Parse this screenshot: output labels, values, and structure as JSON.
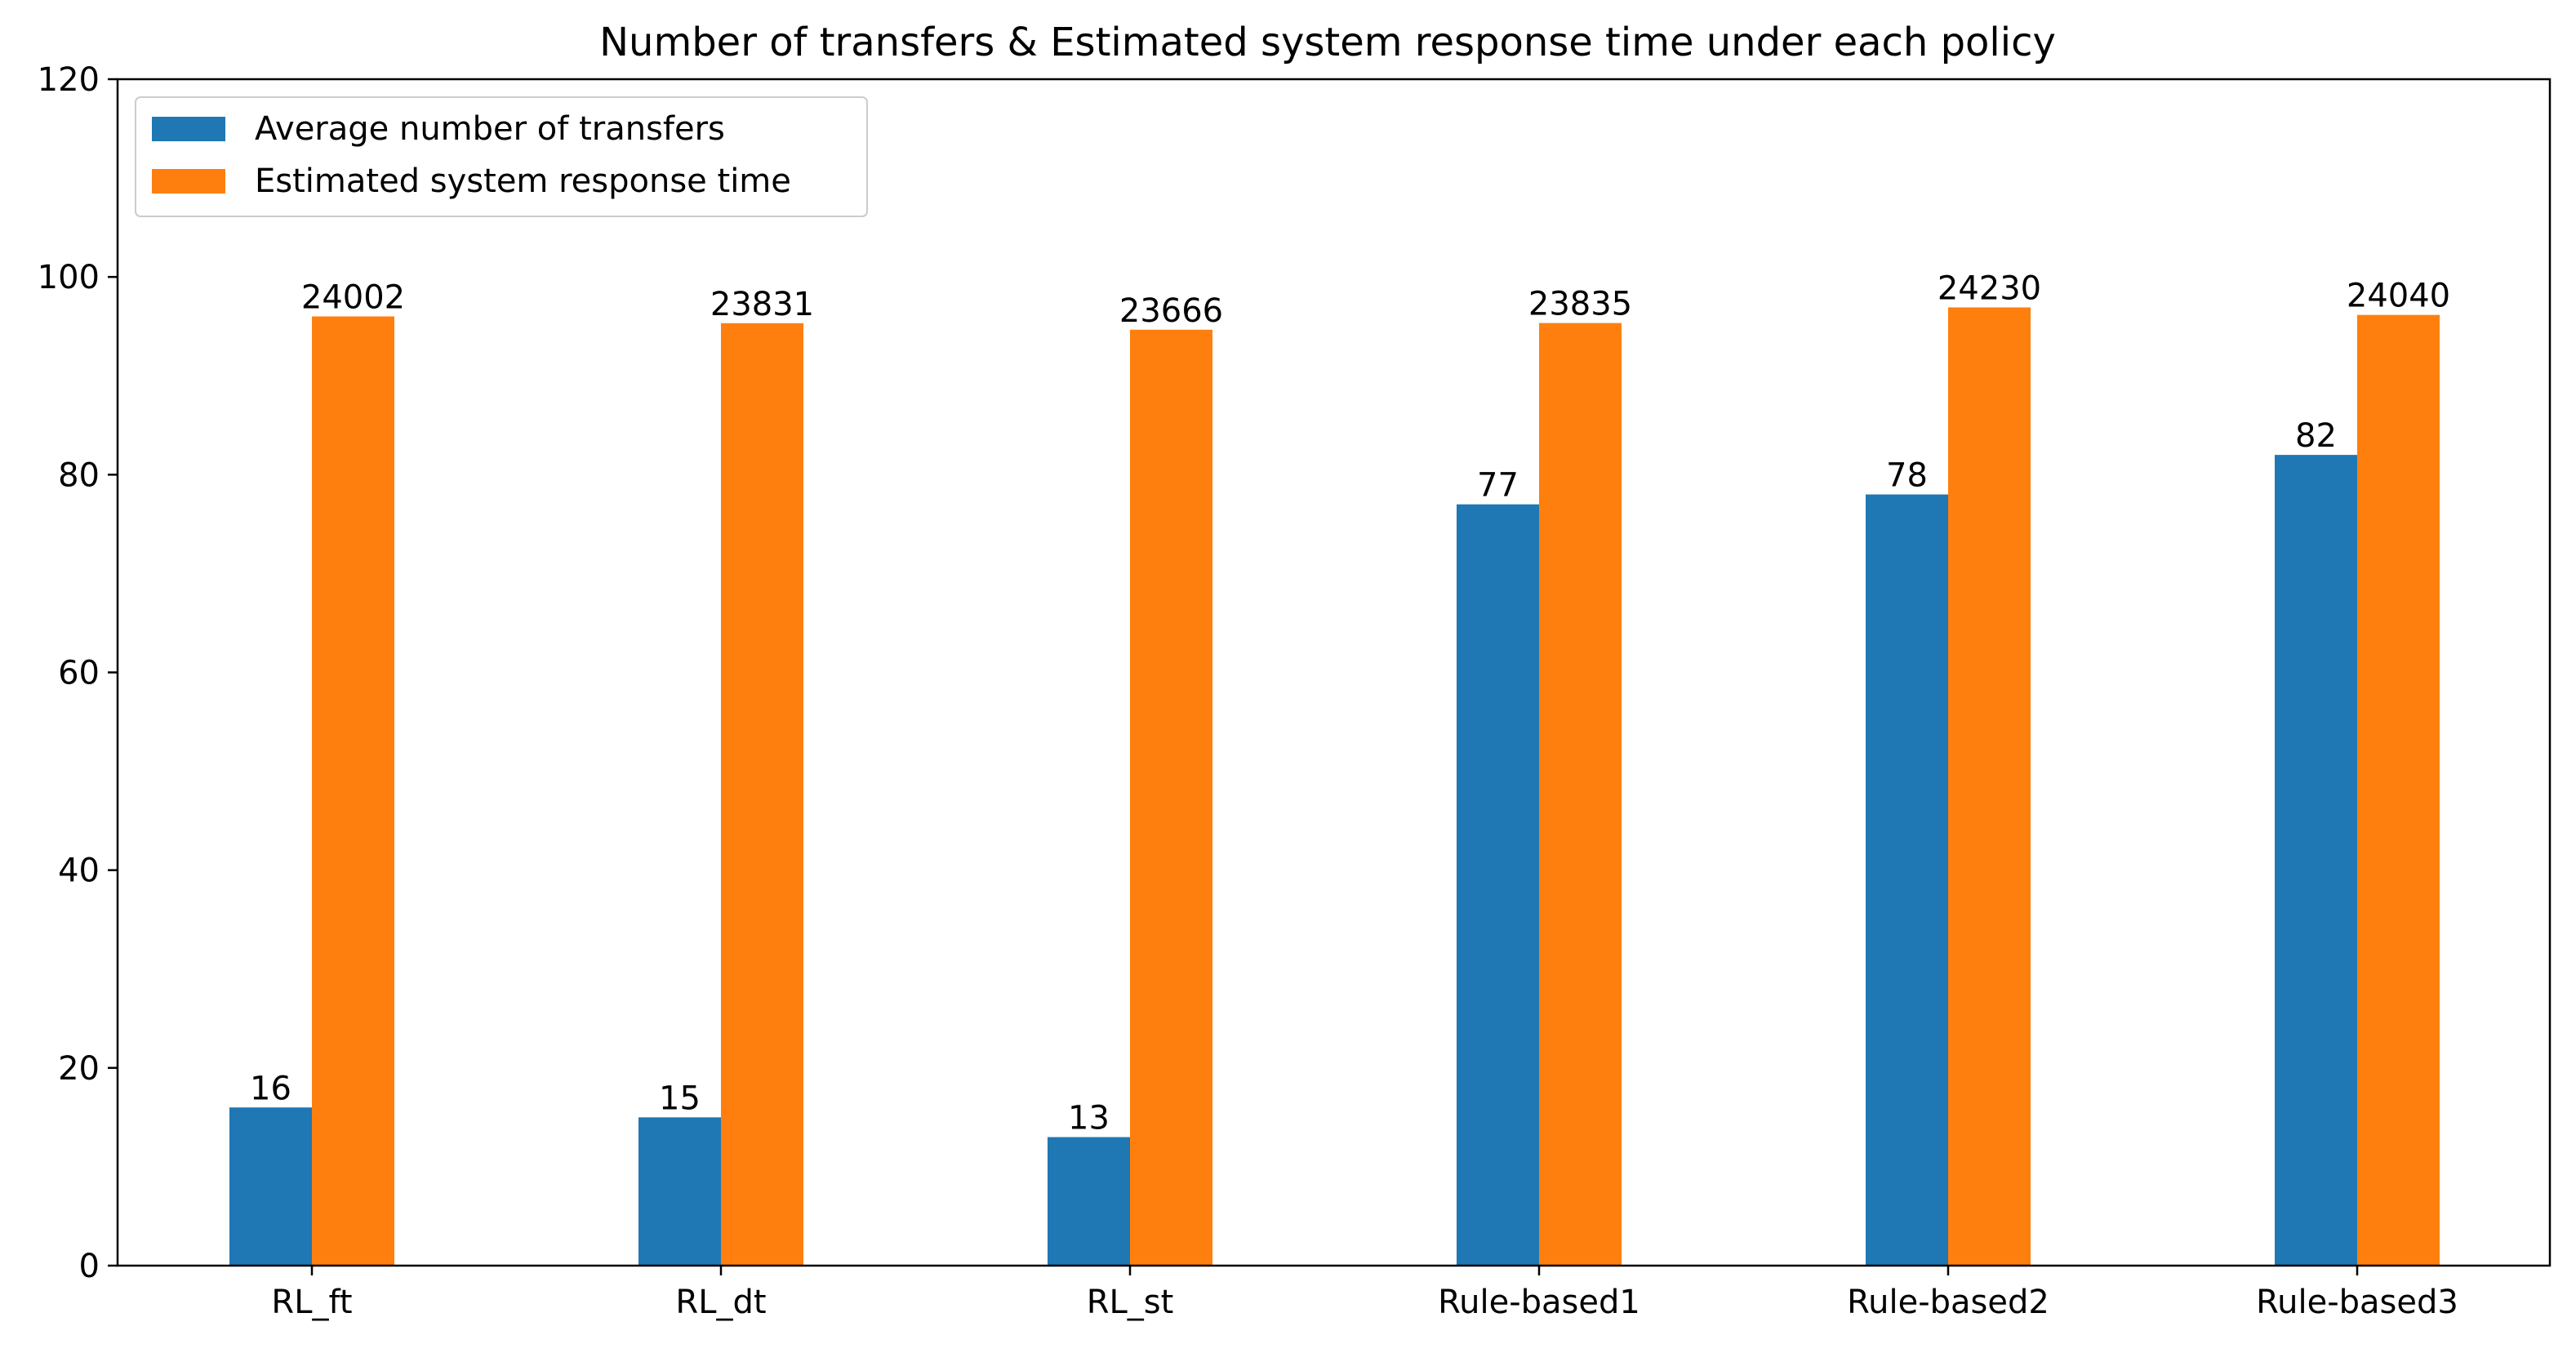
{
  "chart_data": {
    "type": "bar",
    "title": "Number of transfers & Estimated system response time under each policy",
    "xlabel": "",
    "ylabel": "",
    "categories": [
      "RL_ft",
      "RL_dt",
      "RL_st",
      "Rule-based1",
      "Rule-based2",
      "Rule-based3"
    ],
    "ylim": [
      0,
      120
    ],
    "yticks": [
      0,
      20,
      40,
      60,
      80,
      100,
      120
    ],
    "grid": false,
    "legend_position": "top-left",
    "series": [
      {
        "name": "Average number of transfers",
        "color": "#1f77b4",
        "values": [
          16,
          15,
          13,
          77,
          78,
          82
        ],
        "labels": [
          "16",
          "15",
          "13",
          "77",
          "78",
          "82"
        ]
      },
      {
        "name": "Estimated system response time",
        "color": "#ff7f0e",
        "values": [
          96.008,
          95.324,
          94.664,
          95.34,
          96.92,
          96.16
        ],
        "labels": [
          "24002",
          "23831",
          "23666",
          "23835",
          "24230",
          "24040"
        ]
      }
    ]
  }
}
